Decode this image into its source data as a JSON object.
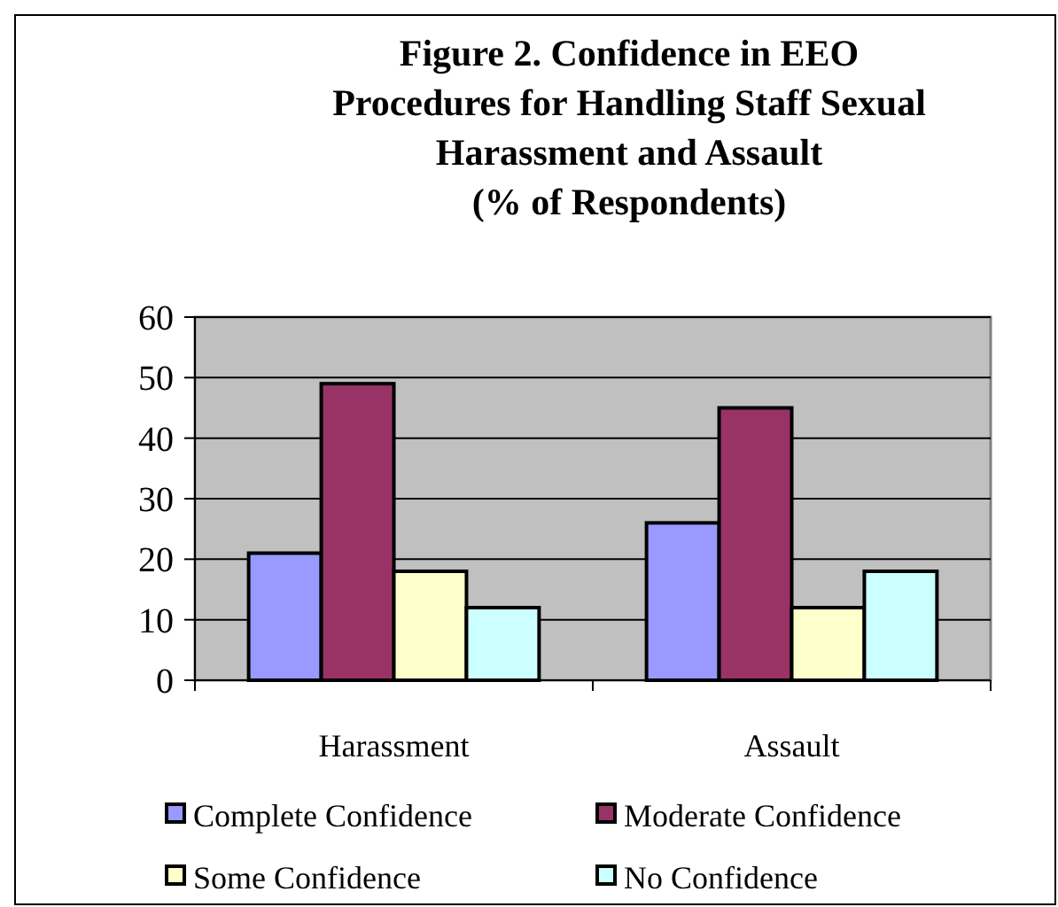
{
  "chart_data": {
    "type": "bar",
    "title": "Figure 2. Confidence in EEO\nProcedures for Handling Staff Sexual\nHarassment and Assault\n(% of Respondents)",
    "categories": [
      "Harassment",
      "Assault"
    ],
    "series": [
      {
        "name": "Complete Confidence",
        "color": "#9999ff",
        "values": [
          21,
          26
        ]
      },
      {
        "name": "Moderate Confidence",
        "color": "#993366",
        "values": [
          49,
          45
        ]
      },
      {
        "name": "Some Confidence",
        "color": "#ffffcc",
        "values": [
          18,
          12
        ]
      },
      {
        "name": "No Confidence",
        "color": "#ccffff",
        "values": [
          12,
          18
        ]
      }
    ],
    "ylim": [
      0,
      60
    ],
    "yticks": [
      0,
      10,
      20,
      30,
      40,
      50,
      60
    ],
    "grid": "y",
    "legend": "bottom"
  }
}
